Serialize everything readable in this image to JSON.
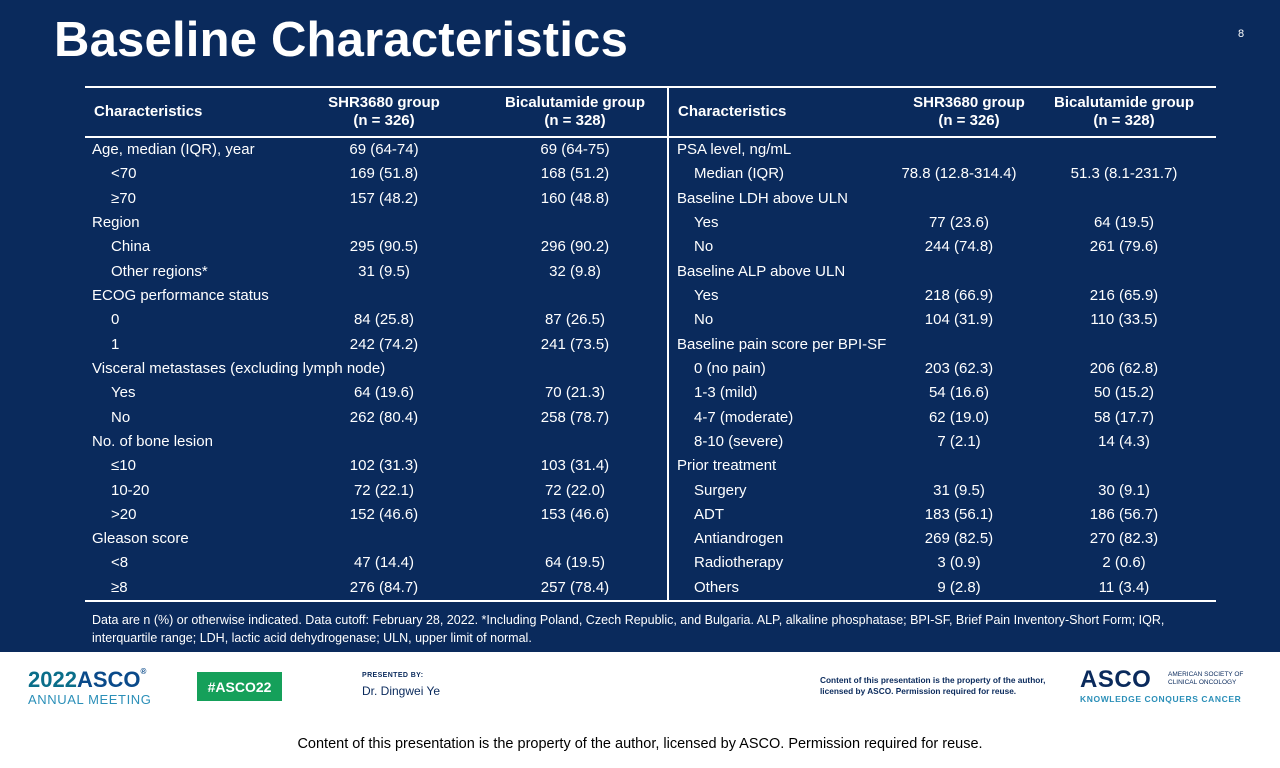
{
  "slide": {
    "title": "Baseline Characteristics",
    "page_number": "8"
  },
  "table_left": {
    "headers": [
      "Characteristics",
      "SHR3680 group",
      "(n = 326)",
      "Bicalutamide group",
      "(n = 328)"
    ],
    "rows": [
      {
        "label": "Age, median (IQR), year",
        "a": "69 (64-74)",
        "b": "69 (64-75)"
      },
      {
        "label": "<70",
        "a": "169 (51.8)",
        "b": "168 (51.2)"
      },
      {
        "label": "≥70",
        "a": "157 (48.2)",
        "b": "160 (48.8)"
      },
      {
        "label": "Region",
        "a": "",
        "b": ""
      },
      {
        "label": "China",
        "a": "295 (90.5)",
        "b": "296 (90.2)"
      },
      {
        "label": "Other regions*",
        "a": "31 (9.5)",
        "b": "32 (9.8)"
      },
      {
        "label": "ECOG performance status",
        "a": "",
        "b": ""
      },
      {
        "label": "0",
        "a": "84 (25.8)",
        "b": "87 (26.5)"
      },
      {
        "label": "1",
        "a": "242 (74.2)",
        "b": "241 (73.5)"
      },
      {
        "label": "Visceral metastases (excluding lymph node)",
        "a": "",
        "b": ""
      },
      {
        "label": "Yes",
        "a": "64 (19.6)",
        "b": "70 (21.3)"
      },
      {
        "label": "No",
        "a": "262 (80.4)",
        "b": "258 (78.7)"
      },
      {
        "label": "No. of bone lesion",
        "a": "",
        "b": ""
      },
      {
        "label": "≤10",
        "a": "102 (31.3)",
        "b": "103 (31.4)"
      },
      {
        "label": "10-20",
        "a": "72 (22.1)",
        "b": "72 (22.0)"
      },
      {
        "label": ">20",
        "a": "152 (46.6)",
        "b": "153 (46.6)"
      },
      {
        "label": "Gleason score",
        "a": "",
        "b": ""
      },
      {
        "label": "<8",
        "a": "47 (14.4)",
        "b": "64 (19.5)"
      },
      {
        "label": "≥8",
        "a": "276 (84.7)",
        "b": "257 (78.4)"
      }
    ]
  },
  "table_right": {
    "headers": [
      "Characteristics",
      "SHR3680 group",
      "(n = 326)",
      "Bicalutamide group",
      "(n = 328)"
    ],
    "rows": [
      {
        "label": "PSA level, ng/mL",
        "a": "",
        "b": ""
      },
      {
        "label": "Median (IQR)",
        "a": "78.8 (12.8-314.4)",
        "b": "51.3 (8.1-231.7)"
      },
      {
        "label": "Baseline LDH above ULN",
        "a": "",
        "b": ""
      },
      {
        "label": "Yes",
        "a": "77 (23.6)",
        "b": "64 (19.5)"
      },
      {
        "label": "No",
        "a": "244 (74.8)",
        "b": "261 (79.6)"
      },
      {
        "label": "Baseline ALP above ULN",
        "a": "",
        "b": ""
      },
      {
        "label": "Yes",
        "a": "218 (66.9)",
        "b": "216 (65.9)"
      },
      {
        "label": "No",
        "a": "104 (31.9)",
        "b": "110 (33.5)"
      },
      {
        "label": "Baseline pain score per BPI-SF",
        "a": "",
        "b": ""
      },
      {
        "label": "0 (no pain)",
        "a": "203 (62.3)",
        "b": "206 (62.8)"
      },
      {
        "label": "1-3 (mild)",
        "a": "54 (16.6)",
        "b": "50 (15.2)"
      },
      {
        "label": "4-7 (moderate)",
        "a": "62 (19.0)",
        "b": "58 (17.7)"
      },
      {
        "label": "8-10 (severe)",
        "a": "7 (2.1)",
        "b": "14 (4.3)"
      },
      {
        "label": "Prior treatment",
        "a": "",
        "b": ""
      },
      {
        "label": "Surgery",
        "a": "31 (9.5)",
        "b": "30 (9.1)"
      },
      {
        "label": "ADT",
        "a": "183 (56.1)",
        "b": "186 (56.7)"
      },
      {
        "label": "Antiandrogen",
        "a": "269 (82.5)",
        "b": "270 (82.3)"
      },
      {
        "label": "Radiotherapy",
        "a": "3 (0.9)",
        "b": "2 (0.6)"
      },
      {
        "label": "Others",
        "a": "9 (2.8)",
        "b": "11 (3.4)"
      }
    ]
  },
  "legend": "Data are n (%) or otherwise indicated. Data cutoff: February 28, 2022. *Including Poland, Czech Republic, and Bulgaria. ALP, alkaline phosphatase; BPI-SF, Brief Pain Inventory-Short Form; IQR, interquartile range; LDH, lactic acid dehydrogenase; ULN, upper limit of normal.",
  "footer": {
    "meeting_year": "2022",
    "meeting_org": "ASCO",
    "meeting_mark": "®",
    "meeting_name": "ANNUAL MEETING",
    "hashtag": "#ASCO22",
    "presented_by_label": "PRESENTED BY:",
    "presenter": "Dr. Dingwei Ye",
    "copyright_small": "Content of this presentation is the property of the author, licensed by ASCO. Permission required for reuse.",
    "logo_text": "ASCO",
    "logo_small": "AMERICAN SOCIETY OF CLINICAL ONCOLOGY",
    "logo_tagline": "KNOWLEDGE CONQUERS CANCER",
    "copyright_bottom": "Content of this presentation is the property of the author, licensed by ASCO. Permission required for reuse."
  },
  "colors": {
    "slide_bg": "#0a2a5c",
    "hashtag_bg": "#15a05a",
    "asco_blue": "#0a4a8a",
    "asco_teal": "#2b8fb8"
  }
}
